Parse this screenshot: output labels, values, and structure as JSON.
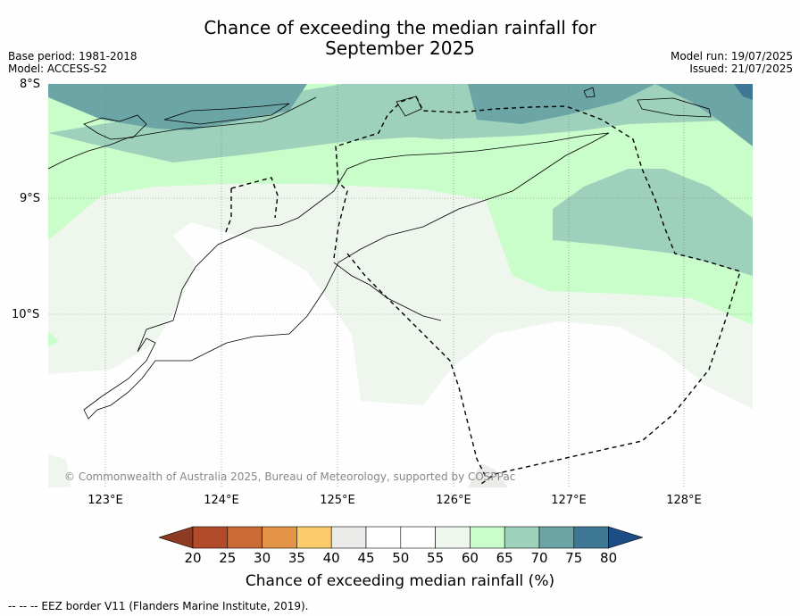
{
  "title_line1": "Chance of exceeding the median rainfall for",
  "title_line2": "September 2025",
  "meta": {
    "base_period": "Base period: 1981-2018",
    "model": "Model: ACCESS-S2",
    "model_run": "Model run: 19/07/2025",
    "issued": "Issued: 21/07/2025"
  },
  "lat_labels": [
    "8°S",
    "9°S",
    "10°S"
  ],
  "lon_labels": [
    "123°E",
    "124°E",
    "125°E",
    "126°E",
    "127°E",
    "128°E"
  ],
  "copyright": "© Commonwealth of Australia 2025, Bureau of Meteorology, supported by COSPPac",
  "colorbar": {
    "label": "Chance of exceeding median rainfall (%)",
    "ticks": [
      "20",
      "25",
      "30",
      "35",
      "40",
      "45",
      "50",
      "55",
      "60",
      "65",
      "70",
      "75",
      "80"
    ],
    "colors": [
      "#8c3a22",
      "#b24b2a",
      "#cc6a35",
      "#e39447",
      "#fccc6a",
      "#ebebe9",
      "#ffffff",
      "#ffffff",
      "#eef6ee",
      "#c9fdc9",
      "#9ed1bc",
      "#6ba5a6",
      "#3f7895",
      "#1c4d85"
    ]
  },
  "footnote": "--  --  -- EEZ border V11 (Flanders Marine Institute, 2019)."
}
